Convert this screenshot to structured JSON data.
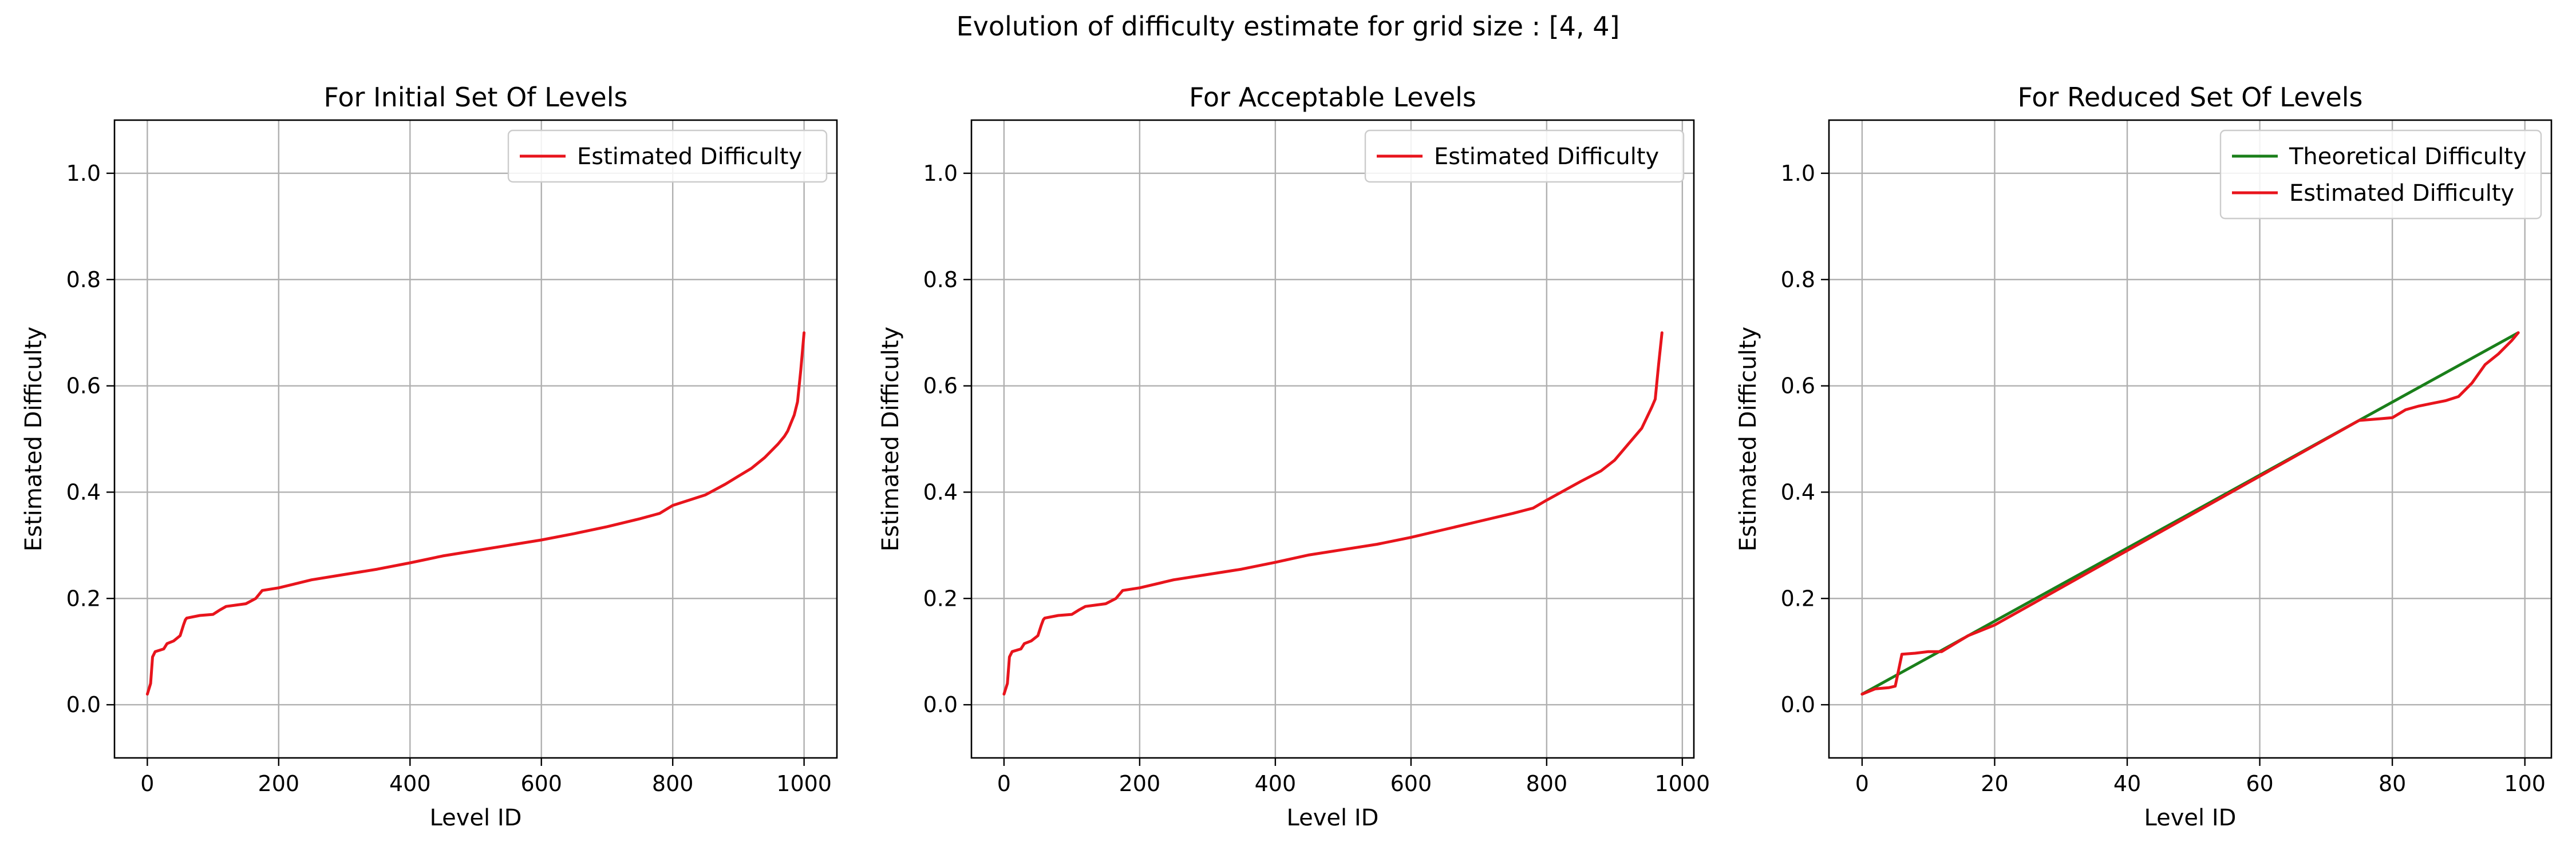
{
  "suptitle": "Evolution of difficulty estimate for grid size : [4, 4]",
  "colors": {
    "estimated": "#e8141c",
    "theoretical": "#1a7f1a",
    "grid": "#b0b0b0",
    "axis": "#000000"
  },
  "chart_data": [
    {
      "type": "line",
      "title": "For Initial Set Of Levels",
      "xlabel": "Level ID",
      "ylabel": "Estimated Difficulty",
      "xlim": [
        -50,
        1050
      ],
      "ylim": [
        -0.1,
        1.1
      ],
      "xticks": [
        0,
        200,
        400,
        600,
        800,
        1000
      ],
      "yticks": [
        0.0,
        0.2,
        0.4,
        0.6,
        0.8,
        1.0
      ],
      "grid": true,
      "legend": "upper right",
      "series": [
        {
          "name": "Estimated Difficulty",
          "color": "#e8141c",
          "x": [
            0,
            5,
            8,
            12,
            25,
            30,
            40,
            50,
            55,
            58,
            60,
            80,
            100,
            110,
            120,
            150,
            165,
            175,
            200,
            250,
            300,
            350,
            400,
            450,
            500,
            550,
            600,
            650,
            700,
            750,
            780,
            800,
            850,
            880,
            900,
            920,
            940,
            960,
            970,
            975,
            980,
            985,
            990,
            995,
            1000
          ],
          "y": [
            0.02,
            0.04,
            0.09,
            0.1,
            0.105,
            0.115,
            0.12,
            0.13,
            0.15,
            0.16,
            0.163,
            0.168,
            0.17,
            0.178,
            0.185,
            0.19,
            0.2,
            0.215,
            0.22,
            0.235,
            0.245,
            0.255,
            0.267,
            0.28,
            0.29,
            0.3,
            0.31,
            0.322,
            0.335,
            0.35,
            0.36,
            0.375,
            0.395,
            0.415,
            0.43,
            0.445,
            0.465,
            0.49,
            0.505,
            0.515,
            0.53,
            0.545,
            0.57,
            0.63,
            0.7
          ]
        }
      ]
    },
    {
      "type": "line",
      "title": "For Acceptable Levels",
      "xlabel": "Level ID",
      "ylabel": "Estimated Difficulty",
      "xlim": [
        -48,
        1017
      ],
      "ylim": [
        -0.1,
        1.1
      ],
      "xticks": [
        0,
        200,
        400,
        600,
        800,
        1000
      ],
      "yticks": [
        0.0,
        0.2,
        0.4,
        0.6,
        0.8,
        1.0
      ],
      "grid": true,
      "legend": "upper right",
      "series": [
        {
          "name": "Estimated Difficulty",
          "color": "#e8141c",
          "x": [
            0,
            5,
            8,
            12,
            25,
            30,
            40,
            50,
            55,
            58,
            60,
            80,
            100,
            110,
            120,
            150,
            165,
            175,
            200,
            250,
            300,
            350,
            400,
            450,
            500,
            550,
            600,
            650,
            700,
            750,
            780,
            800,
            850,
            880,
            900,
            920,
            940,
            955,
            960,
            965,
            970
          ],
          "y": [
            0.02,
            0.04,
            0.09,
            0.1,
            0.105,
            0.115,
            0.12,
            0.13,
            0.15,
            0.16,
            0.163,
            0.168,
            0.17,
            0.178,
            0.185,
            0.19,
            0.2,
            0.215,
            0.22,
            0.235,
            0.245,
            0.255,
            0.268,
            0.282,
            0.292,
            0.302,
            0.315,
            0.33,
            0.345,
            0.36,
            0.37,
            0.385,
            0.42,
            0.44,
            0.46,
            0.49,
            0.52,
            0.56,
            0.575,
            0.64,
            0.7
          ]
        }
      ]
    },
    {
      "type": "line",
      "title": "For Reduced Set Of Levels",
      "xlabel": "Level ID",
      "ylabel": "Estimated Difficulty",
      "xlim": [
        -5,
        104
      ],
      "ylim": [
        -0.1,
        1.1
      ],
      "xticks": [
        0,
        20,
        40,
        60,
        80,
        100
      ],
      "yticks": [
        0.0,
        0.2,
        0.4,
        0.6,
        0.8,
        1.0
      ],
      "grid": true,
      "legend": "upper right",
      "series": [
        {
          "name": "Theoretical Difficulty",
          "color": "#1a7f1a",
          "x": [
            0,
            99
          ],
          "y": [
            0.02,
            0.7
          ]
        },
        {
          "name": "Estimated Difficulty",
          "color": "#e8141c",
          "x": [
            0,
            2,
            4,
            5,
            6,
            8,
            10,
            12,
            14,
            16,
            18,
            20,
            30,
            40,
            50,
            60,
            70,
            75,
            78,
            80,
            82,
            84,
            86,
            88,
            90,
            92,
            94,
            96,
            98,
            99
          ],
          "y": [
            0.02,
            0.03,
            0.032,
            0.035,
            0.095,
            0.097,
            0.1,
            0.1,
            0.115,
            0.13,
            0.14,
            0.15,
            0.22,
            0.29,
            0.36,
            0.43,
            0.5,
            0.535,
            0.538,
            0.54,
            0.555,
            0.562,
            0.567,
            0.572,
            0.58,
            0.605,
            0.64,
            0.66,
            0.685,
            0.7
          ]
        }
      ]
    }
  ]
}
